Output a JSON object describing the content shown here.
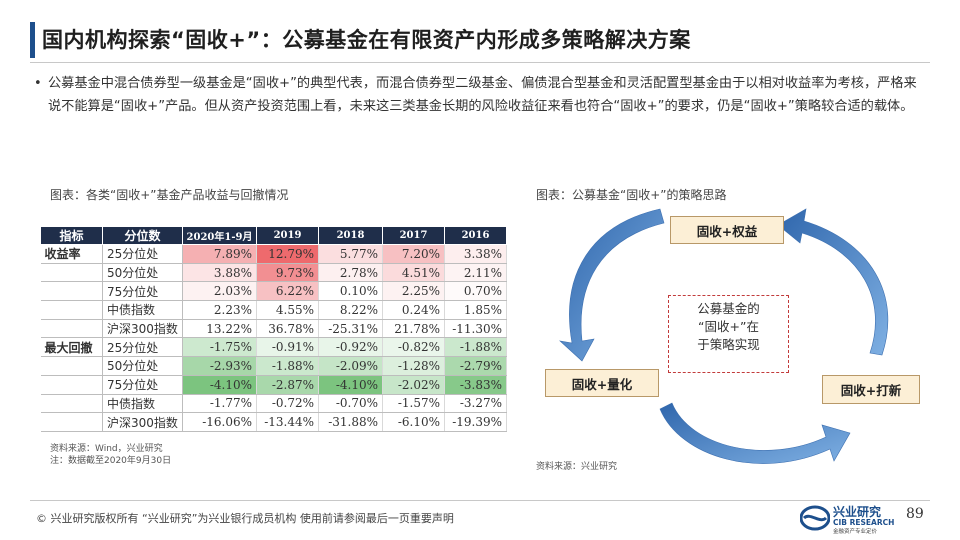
{
  "title": "国内机构探索“固收+”：公募基金在有限资产内形成多策略解决方案",
  "bullet": "公募基金中混合债券型一级基金是“固收+”的典型代表，而混合债券型二级基金、偏债混合型基金和灵活配置型基金由于以相对收益率为考核，严格来说不能算是“固收+”产品。但从资产投资范围上看，未来这三类基金长期的风险收益征来看也符合“固收+”的要求，仍是“固收+”策略较合适的载体。",
  "left_caption": "图表：各类“固收+”基金产品收益与回撤情况",
  "right_caption": "图表：公募基金“固收+”的策略思路",
  "table": {
    "headers": [
      "指标",
      "分位数",
      "2020年1-9月",
      "2019",
      "2018",
      "2017",
      "2016"
    ],
    "groups": [
      {
        "label": "收益率",
        "rows": [
          {
            "label": "25分位处",
            "values": [
              "7.89%",
              "12.79%",
              "5.77%",
              "7.20%",
              "3.38%"
            ],
            "colors": [
              "#f5b0b2",
              "#ee6a6d",
              "#fbdedf",
              "#f7c0c2",
              "#fdeeee"
            ]
          },
          {
            "label": "50分位处",
            "values": [
              "3.88%",
              "9.73%",
              "2.78%",
              "4.51%",
              "2.11%"
            ],
            "colors": [
              "#fce4e5",
              "#f28f92",
              "#fdf0f0",
              "#fbdbdc",
              "#fdf3f3"
            ]
          },
          {
            "label": "75分位处",
            "values": [
              "2.03%",
              "6.22%",
              "0.10%",
              "2.25%",
              "0.70%"
            ],
            "colors": [
              "#fdf2f2",
              "#f7c1c3",
              "#ffffff",
              "#fdf2f2",
              "#fefafa"
            ]
          },
          {
            "label": "中债指数",
            "values": [
              "2.23%",
              "4.55%",
              "8.22%",
              "0.24%",
              "1.85%"
            ],
            "colors": [
              "#ffffff",
              "#ffffff",
              "#ffffff",
              "#ffffff",
              "#ffffff"
            ]
          },
          {
            "label": "沪深300指数",
            "values": [
              "13.22%",
              "36.78%",
              "-25.31%",
              "21.78%",
              "-11.30%"
            ],
            "colors": [
              "#ffffff",
              "#ffffff",
              "#ffffff",
              "#ffffff",
              "#ffffff"
            ]
          }
        ]
      },
      {
        "label": "最大回撤",
        "rows": [
          {
            "label": "25分位处",
            "values": [
              "-1.75%",
              "-0.91%",
              "-0.92%",
              "-0.82%",
              "-1.88%"
            ],
            "colors": [
              "#cde9cf",
              "#e8f5e9",
              "#e8f5e9",
              "#eaf6eb",
              "#cbe8cd"
            ]
          },
          {
            "label": "50分位处",
            "values": [
              "-2.93%",
              "-1.88%",
              "-2.09%",
              "-1.28%",
              "-2.79%"
            ],
            "colors": [
              "#a7d7a9",
              "#cbe8cd",
              "#c5e5c7",
              "#dcefdd",
              "#abd9ad"
            ]
          },
          {
            "label": "75分位处",
            "values": [
              "-4.10%",
              "-2.87%",
              "-4.10%",
              "-2.02%",
              "-3.83%"
            ],
            "colors": [
              "#7cc47f",
              "#a9d8ab",
              "#7cc47f",
              "#c7e6c9",
              "#87c98a"
            ]
          },
          {
            "label": "中债指数",
            "values": [
              "-1.77%",
              "-0.72%",
              "-0.70%",
              "-1.57%",
              "-3.27%"
            ],
            "colors": [
              "#ffffff",
              "#ffffff",
              "#ffffff",
              "#ffffff",
              "#ffffff"
            ]
          },
          {
            "label": "沪深300指数",
            "values": [
              "-16.06%",
              "-13.44%",
              "-31.88%",
              "-6.10%",
              "-19.39%"
            ],
            "colors": [
              "#ffffff",
              "#ffffff",
              "#ffffff",
              "#ffffff",
              "#ffffff"
            ]
          }
        ]
      }
    ]
  },
  "notes": {
    "source_left": "资料来源：Wind，兴业研究",
    "note_left": "注：数据截至2020年9月30日",
    "source_right": "资料来源：兴业研究"
  },
  "diagram": {
    "top": "固收+权益",
    "left": "固收+量化",
    "right": "固收+打新",
    "center": [
      "公募基金的",
      "“固收+”在",
      "于策略实现"
    ]
  },
  "footer": {
    "text": "©  兴业研究版权所有   “兴业研究”为兴业银行成员机构   使用前请参阅最后一页重要声明",
    "logo_cn": "兴业研究",
    "logo_en": "CIB RESEARCH",
    "logo_sub": "金融资产专业定价",
    "page": "89"
  },
  "colors": {
    "accent": "#1d4f8c",
    "header_bg": "#1f2e4a",
    "arrow": "#4a82c2",
    "box_fill": "#fcefd6"
  }
}
